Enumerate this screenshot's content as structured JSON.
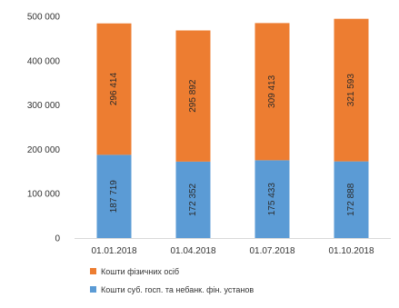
{
  "chart_data": {
    "type": "bar",
    "stacked": true,
    "categories": [
      "01.01.2018",
      "01.04.2018",
      "01.07.2018",
      "01.10.2018"
    ],
    "series": [
      {
        "name": "Кошти суб. госп. та небанк. фін. установ",
        "values": [
          187719,
          172352,
          175433,
          172888
        ],
        "labels": [
          "187 719",
          "172 352",
          "175 433",
          "172 888"
        ],
        "color": "#5b9bd5"
      },
      {
        "name": "Кошти фізичних осіб",
        "values": [
          296414,
          295892,
          309413,
          321593
        ],
        "labels": [
          "296 414",
          "295 892",
          "309 413",
          "321 593"
        ],
        "color": "#ed7d31"
      }
    ],
    "ylim": [
      0,
      500000
    ],
    "yticks": [
      0,
      100000,
      200000,
      300000,
      400000,
      500000
    ],
    "ytick_labels": [
      "0",
      "100 000",
      "200 000",
      "300 000",
      "400 000",
      "500 000"
    ],
    "grid": false,
    "legend_position": "bottom",
    "legend": [
      "Кошти фізичних осіб",
      "Кошти суб. госп. та небанк. фін. установ"
    ]
  }
}
